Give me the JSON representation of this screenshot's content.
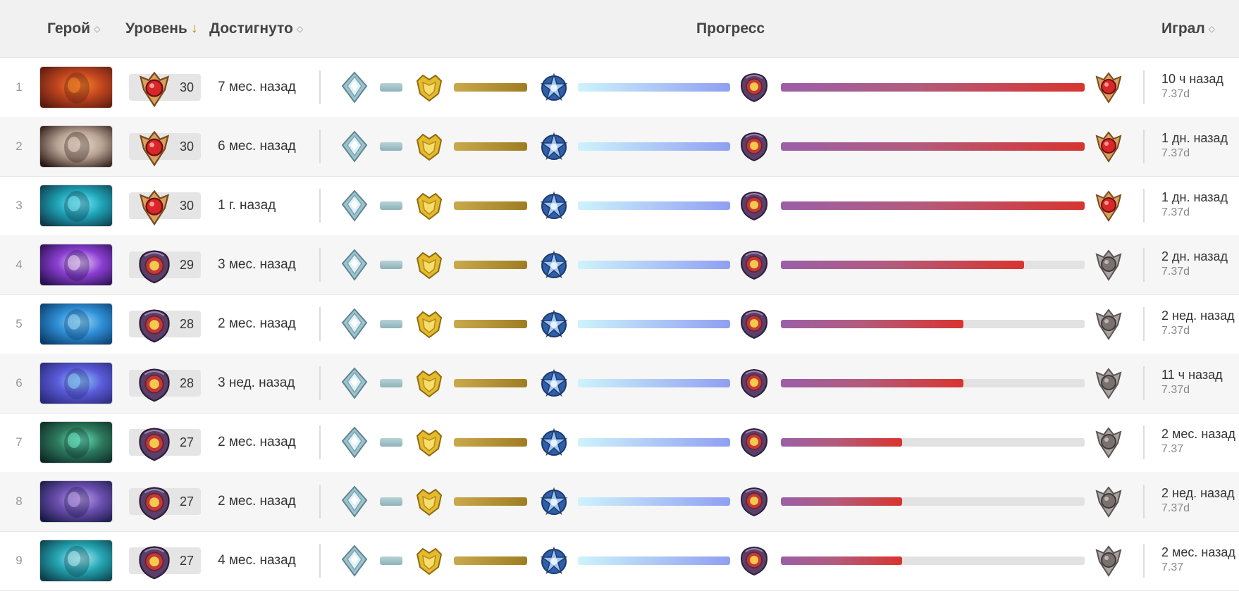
{
  "header": {
    "hero": "Герой",
    "level": "Уровень",
    "level_sort": "↓",
    "achieved": "Достигнуто",
    "progress": "Прогресс",
    "played": "Играл"
  },
  "colors": {
    "bar_tier1": "#a6c4c9",
    "bar_tier2": "#b89a3a",
    "bar_tier3": "#aac7f7",
    "bar_tier4_start": "#9b5fa8",
    "bar_tier4_end": "#d8342f",
    "bar_empty": "#e2e2e2"
  },
  "icons": {
    "tier1": "crystal-badge-icon",
    "tier2": "gold-badge-icon",
    "tier3": "blue-star-badge-icon",
    "tier4": "purple-sun-badge-icon",
    "tier5_earned": "red-gem-badge-icon",
    "tier5_locked": "grey-badge-icon"
  },
  "rows": [
    {
      "rank": "1",
      "hero": "hero-portrait-1",
      "level": "30",
      "level_badge": "red-gem-badge-icon",
      "achieved": "7 мес. назад",
      "tier4_progress": 1.0,
      "final_earned": true,
      "played": "10 ч назад",
      "version": "7.37d"
    },
    {
      "rank": "2",
      "hero": "hero-portrait-2",
      "level": "30",
      "level_badge": "red-gem-badge-icon",
      "achieved": "6 мес. назад",
      "tier4_progress": 1.0,
      "final_earned": true,
      "played": "1 дн. назад",
      "version": "7.37d"
    },
    {
      "rank": "3",
      "hero": "hero-portrait-3",
      "level": "30",
      "level_badge": "red-gem-badge-icon",
      "achieved": "1 г. назад",
      "tier4_progress": 1.0,
      "final_earned": true,
      "played": "1 дн. назад",
      "version": "7.37d"
    },
    {
      "rank": "4",
      "hero": "hero-portrait-4",
      "level": "29",
      "level_badge": "purple-sun-badge-icon",
      "achieved": "3 мес. назад",
      "tier4_progress": 0.8,
      "final_earned": false,
      "played": "2 дн. назад",
      "version": "7.37d"
    },
    {
      "rank": "5",
      "hero": "hero-portrait-5",
      "level": "28",
      "level_badge": "purple-sun-badge-icon",
      "achieved": "2 мес. назад",
      "tier4_progress": 0.6,
      "final_earned": false,
      "played": "2 нед. назад",
      "version": "7.37d"
    },
    {
      "rank": "6",
      "hero": "hero-portrait-6",
      "level": "28",
      "level_badge": "purple-sun-badge-icon",
      "achieved": "3 нед. назад",
      "tier4_progress": 0.6,
      "final_earned": false,
      "played": "11 ч назад",
      "version": "7.37d"
    },
    {
      "rank": "7",
      "hero": "hero-portrait-7",
      "level": "27",
      "level_badge": "purple-sun-badge-icon",
      "achieved": "2 мес. назад",
      "tier4_progress": 0.4,
      "final_earned": false,
      "played": "2 мес. назад",
      "version": "7.37"
    },
    {
      "rank": "8",
      "hero": "hero-portrait-8",
      "level": "27",
      "level_badge": "purple-sun-badge-icon",
      "achieved": "2 мес. назад",
      "tier4_progress": 0.4,
      "final_earned": false,
      "played": "2 нед. назад",
      "version": "7.37d"
    },
    {
      "rank": "9",
      "hero": "hero-portrait-9",
      "level": "27",
      "level_badge": "purple-sun-badge-icon",
      "achieved": "4 мес. назад",
      "tier4_progress": 0.4,
      "final_earned": false,
      "played": "2 мес. назад",
      "version": "7.37"
    }
  ]
}
